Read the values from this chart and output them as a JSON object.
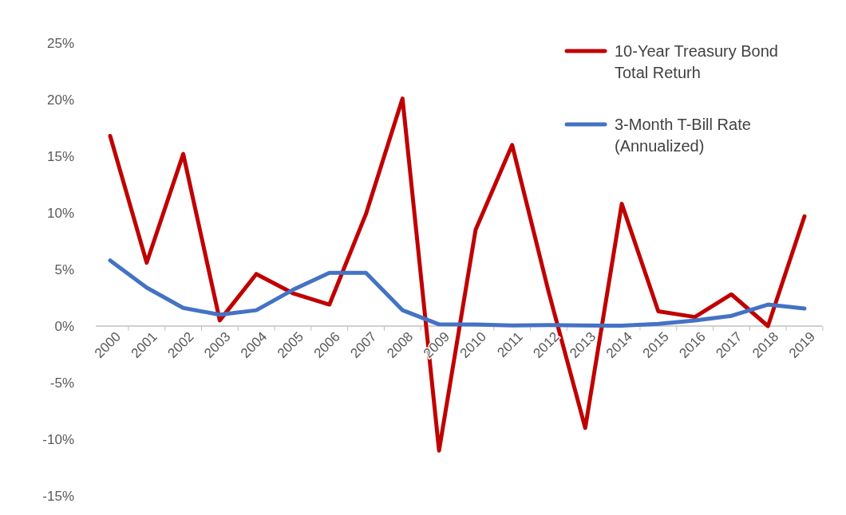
{
  "chart_data": {
    "type": "line",
    "categories": [
      "2000",
      "2001",
      "2002",
      "2003",
      "2004",
      "2005",
      "2006",
      "2007",
      "2008",
      "2009",
      "2010",
      "2011",
      "2012",
      "2013",
      "2014",
      "2015",
      "2016",
      "2017",
      "2018",
      "2019"
    ],
    "series": [
      {
        "name": "10-Year Treasury Bond Total Returh",
        "color": "#c00000",
        "values": [
          16.8,
          5.6,
          15.2,
          0.5,
          4.6,
          2.9,
          1.9,
          9.9,
          20.1,
          -11.0,
          8.5,
          16.0,
          3.0,
          -9.0,
          10.8,
          1.3,
          0.8,
          2.8,
          0.0,
          9.7
        ]
      },
      {
        "name": "3-Month T-Bill Rate (Annualized)",
        "color": "#4472c4",
        "values": [
          5.8,
          3.4,
          1.6,
          1.0,
          1.4,
          3.2,
          4.7,
          4.7,
          1.4,
          0.15,
          0.14,
          0.05,
          0.09,
          0.06,
          0.03,
          0.2,
          0.5,
          0.9,
          1.9,
          1.55
        ]
      }
    ],
    "ylim": [
      -15,
      25
    ],
    "yticks": [
      {
        "value": -15,
        "label": "-15%"
      },
      {
        "value": -10,
        "label": "-10%"
      },
      {
        "value": -5,
        "label": "-5%"
      },
      {
        "value": 0,
        "label": "0%"
      },
      {
        "value": 5,
        "label": "5%"
      },
      {
        "value": 10,
        "label": "10%"
      },
      {
        "value": 15,
        "label": "15%"
      },
      {
        "value": 20,
        "label": "20%"
      },
      {
        "value": 25,
        "label": "25%"
      }
    ],
    "grid": false,
    "legend": "top right",
    "marker": "none",
    "line_style": "solid"
  }
}
